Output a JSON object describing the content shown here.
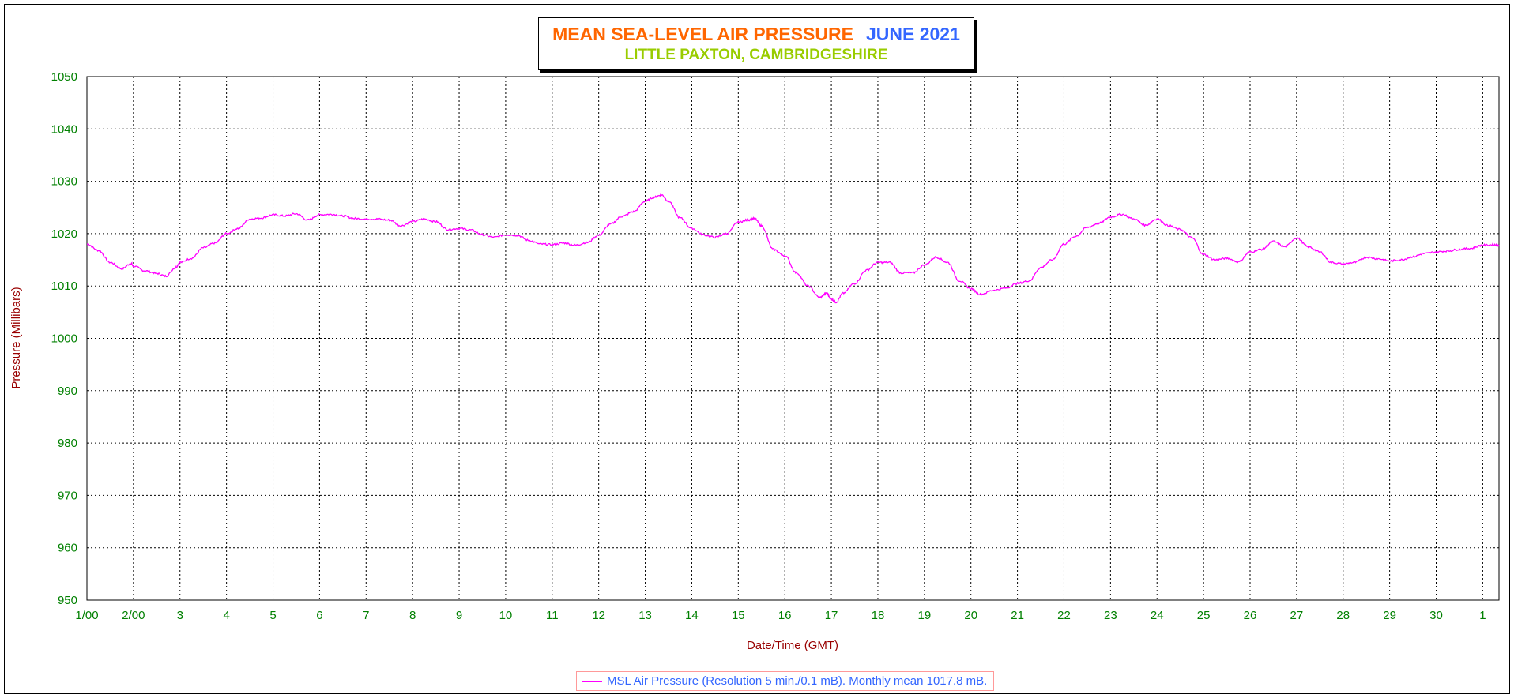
{
  "chart_data": {
    "type": "line",
    "title": "MEAN SEA-LEVEL AIR PRESSURE",
    "title_month": "JUNE 2021",
    "subtitle": "LITTLE PAXTON, CAMBRIDGESHIRE",
    "xlabel": "Date/Time (GMT)",
    "ylabel": "Pressure (Millibars)",
    "ylim": [
      950,
      1050
    ],
    "yticks": [
      950,
      960,
      970,
      980,
      990,
      1000,
      1010,
      1020,
      1030,
      1040,
      1050
    ],
    "xlim": [
      1,
      31.35
    ],
    "xtick_labels": [
      "1/00",
      "2/00",
      "3",
      "4",
      "5",
      "6",
      "7",
      "8",
      "9",
      "10",
      "11",
      "12",
      "13",
      "14",
      "15",
      "16",
      "17",
      "18",
      "19",
      "20",
      "21",
      "22",
      "23",
      "24",
      "25",
      "26",
      "27",
      "28",
      "29",
      "30",
      "1"
    ],
    "grid": true,
    "legend": "bottom-center",
    "colors": {
      "series": "#ff00ff",
      "axis_text": "#008000",
      "axis_label": "#990000",
      "grid": "#000000"
    },
    "series": [
      {
        "name": "MSL Air Pressure (Resolution 5 min./0.1 mB). Monthly mean 1017.8 mB.",
        "x": [
          1.0,
          1.25,
          1.5,
          1.75,
          1.95,
          2.0,
          2.25,
          2.5,
          2.7,
          2.9,
          3.0,
          3.25,
          3.5,
          3.75,
          4.0,
          4.25,
          4.5,
          4.75,
          5.0,
          5.25,
          5.5,
          5.75,
          6.0,
          6.25,
          6.5,
          6.75,
          7.0,
          7.25,
          7.5,
          7.75,
          8.0,
          8.25,
          8.5,
          8.75,
          9.0,
          9.25,
          9.5,
          9.75,
          10.0,
          10.25,
          10.5,
          10.75,
          11.0,
          11.25,
          11.5,
          11.75,
          12.0,
          12.25,
          12.5,
          12.75,
          13.0,
          13.2,
          13.35,
          13.5,
          13.75,
          14.0,
          14.25,
          14.5,
          14.75,
          15.0,
          15.2,
          15.35,
          15.5,
          15.75,
          16.0,
          16.25,
          16.5,
          16.75,
          16.9,
          17.0,
          17.1,
          17.25,
          17.5,
          17.75,
          18.0,
          18.25,
          18.5,
          18.75,
          19.0,
          19.25,
          19.5,
          19.75,
          20.0,
          20.2,
          20.5,
          20.75,
          21.0,
          21.25,
          21.5,
          21.75,
          22.0,
          22.25,
          22.5,
          22.75,
          23.0,
          23.25,
          23.5,
          23.75,
          24.0,
          24.25,
          24.5,
          24.75,
          25.0,
          25.25,
          25.5,
          25.75,
          26.0,
          26.25,
          26.5,
          26.75,
          27.0,
          27.25,
          27.5,
          27.75,
          28.0,
          28.25,
          28.5,
          28.75,
          29.0,
          29.25,
          29.5,
          29.75,
          30.0,
          30.25,
          30.5,
          30.75,
          31.0,
          31.25,
          31.35
        ],
        "values": [
          1018.0,
          1016.8,
          1014.5,
          1013.3,
          1014.3,
          1013.8,
          1012.9,
          1012.4,
          1011.9,
          1013.5,
          1014.5,
          1015.3,
          1017.3,
          1018.2,
          1020.0,
          1021.0,
          1022.8,
          1023.0,
          1023.6,
          1023.4,
          1023.8,
          1022.6,
          1023.6,
          1023.7,
          1023.4,
          1022.9,
          1022.8,
          1022.8,
          1022.6,
          1021.5,
          1022.3,
          1022.8,
          1022.3,
          1020.8,
          1021.0,
          1020.7,
          1019.8,
          1019.3,
          1019.8,
          1019.7,
          1018.7,
          1018.0,
          1017.9,
          1018.2,
          1017.8,
          1018.3,
          1019.7,
          1021.8,
          1023.3,
          1024.2,
          1026.2,
          1027.0,
          1027.4,
          1026.2,
          1023.0,
          1021.0,
          1019.8,
          1019.3,
          1020.0,
          1022.2,
          1022.6,
          1022.9,
          1021.5,
          1017.0,
          1015.8,
          1012.5,
          1010.0,
          1007.8,
          1008.6,
          1007.5,
          1006.9,
          1008.6,
          1010.5,
          1013.0,
          1014.5,
          1014.5,
          1012.5,
          1012.5,
          1014.0,
          1015.5,
          1014.5,
          1011.0,
          1009.5,
          1008.4,
          1009.2,
          1009.6,
          1010.5,
          1011.0,
          1013.5,
          1015.0,
          1018.0,
          1019.5,
          1021.2,
          1022.0,
          1023.2,
          1023.7,
          1022.8,
          1021.6,
          1022.8,
          1021.5,
          1020.8,
          1019.2,
          1016.0,
          1015.0,
          1015.3,
          1014.6,
          1016.5,
          1017.0,
          1018.5,
          1017.5,
          1019.2,
          1017.5,
          1016.5,
          1014.5,
          1014.2,
          1014.5,
          1015.5,
          1015.2,
          1014.8,
          1015.0,
          1015.6,
          1016.2,
          1016.5,
          1016.7,
          1017.0,
          1017.2,
          1017.8,
          1017.9,
          1017.8
        ]
      }
    ]
  }
}
